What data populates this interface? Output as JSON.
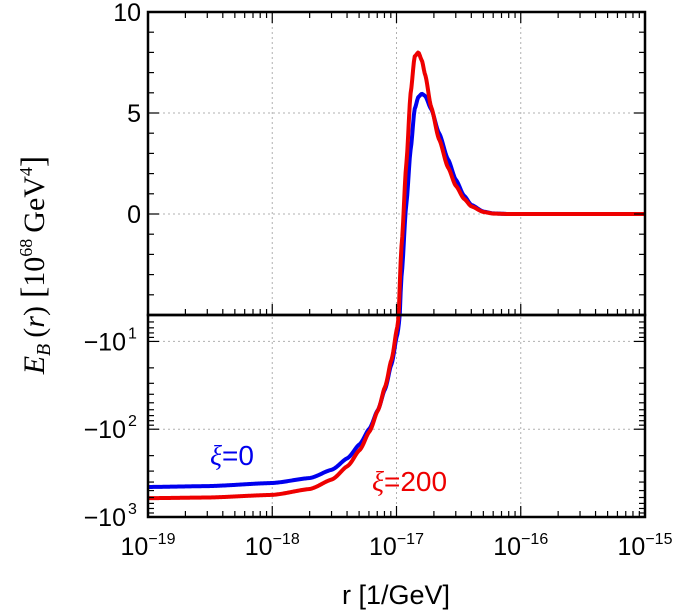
{
  "chart_data": {
    "type": "line",
    "xscale": "log",
    "xlabel": "r [1/GeV]",
    "xlim": [
      1e-19,
      1e-15
    ],
    "xticks": [
      {
        "value": 1e-19,
        "base": "10",
        "exp": "−19"
      },
      {
        "value": 1e-18,
        "base": "10",
        "exp": "−18"
      },
      {
        "value": 1e-17,
        "base": "10",
        "exp": "−17"
      },
      {
        "value": 1e-16,
        "base": "10",
        "exp": "−16"
      },
      {
        "value": 1e-15,
        "base": "10",
        "exp": "−15"
      }
    ],
    "ylabel": {
      "var": "E",
      "sub": "B",
      "arg": "r",
      "unit_base": "10",
      "unit_exp": "68",
      "unit_name": "GeV",
      "unit_pow": "4"
    },
    "panels": [
      {
        "name": "upper",
        "yscale": "linear",
        "ylim": [
          -5,
          10
        ],
        "yticks": [
          {
            "value": 10,
            "label": "10"
          },
          {
            "value": 5,
            "label": "5"
          },
          {
            "value": 0,
            "label": "0"
          }
        ]
      },
      {
        "name": "lower",
        "yscale": "negative-log",
        "ylim": [
          -1000,
          -5
        ],
        "yticks": [
          {
            "value": -10,
            "label": "−10",
            "exp": "1"
          },
          {
            "value": -100,
            "label": "−10",
            "exp": "2"
          },
          {
            "value": -1000,
            "label": "−10",
            "exp": "3"
          }
        ]
      }
    ],
    "series": [
      {
        "name": "xi=0",
        "color": "#0000ee",
        "points": [
          [
            1e-19,
            -455
          ],
          [
            3e-19,
            -445
          ],
          [
            1e-18,
            -410
          ],
          [
            2e-18,
            -360
          ],
          [
            3e-18,
            -290
          ],
          [
            4e-18,
            -215
          ],
          [
            5e-18,
            -150
          ],
          [
            6e-18,
            -100
          ],
          [
            7e-18,
            -62
          ],
          [
            8e-18,
            -36
          ],
          [
            9e-18,
            -19
          ],
          [
            1e-17,
            -9
          ],
          [
            1.1e-17,
            -3
          ],
          [
            1.2e-17,
            0.5
          ],
          [
            1.3e-17,
            3.2
          ],
          [
            1.4e-17,
            5.2
          ],
          [
            1.5e-17,
            5.8
          ],
          [
            1.6e-17,
            5.95
          ],
          [
            1.7e-17,
            5.85
          ],
          [
            1.9e-17,
            5.2
          ],
          [
            2.2e-17,
            4.0
          ],
          [
            2.6e-17,
            2.7
          ],
          [
            3e-17,
            1.7
          ],
          [
            3.5e-17,
            0.9
          ],
          [
            4e-17,
            0.45
          ],
          [
            5e-17,
            0.12
          ],
          [
            6e-17,
            0.03
          ],
          [
            8e-17,
            0.0
          ],
          [
            1e-16,
            0
          ],
          [
            1e-15,
            0
          ]
        ]
      },
      {
        "name": "xi=200",
        "color": "#ee0000",
        "points": [
          [
            1e-19,
            -610
          ],
          [
            3e-19,
            -600
          ],
          [
            1e-18,
            -560
          ],
          [
            2e-18,
            -480
          ],
          [
            3e-18,
            -375
          ],
          [
            4e-18,
            -265
          ],
          [
            5e-18,
            -175
          ],
          [
            6e-18,
            -108
          ],
          [
            7e-18,
            -63
          ],
          [
            8e-18,
            -34
          ],
          [
            9e-18,
            -17
          ],
          [
            1e-17,
            -7.5
          ],
          [
            1.1e-17,
            -1.5
          ],
          [
            1.2e-17,
            2.5
          ],
          [
            1.3e-17,
            6.0
          ],
          [
            1.4e-17,
            7.8
          ],
          [
            1.5e-17,
            8.0
          ],
          [
            1.6e-17,
            7.6
          ],
          [
            1.7e-17,
            6.9
          ],
          [
            1.9e-17,
            5.3
          ],
          [
            2.2e-17,
            3.7
          ],
          [
            2.6e-17,
            2.3
          ],
          [
            3e-17,
            1.4
          ],
          [
            3.5e-17,
            0.75
          ],
          [
            4e-17,
            0.38
          ],
          [
            5e-17,
            0.1
          ],
          [
            6e-17,
            0.02
          ],
          [
            8e-17,
            0.0
          ],
          [
            1e-16,
            0
          ],
          [
            1e-15,
            0
          ]
        ]
      }
    ],
    "annotations": [
      {
        "symbol": "ξ",
        "text": "=0",
        "color": "#0000ee",
        "series": "xi=0"
      },
      {
        "symbol": "ξ",
        "text": "=200",
        "color": "#ee0000",
        "series": "xi=200"
      }
    ]
  }
}
